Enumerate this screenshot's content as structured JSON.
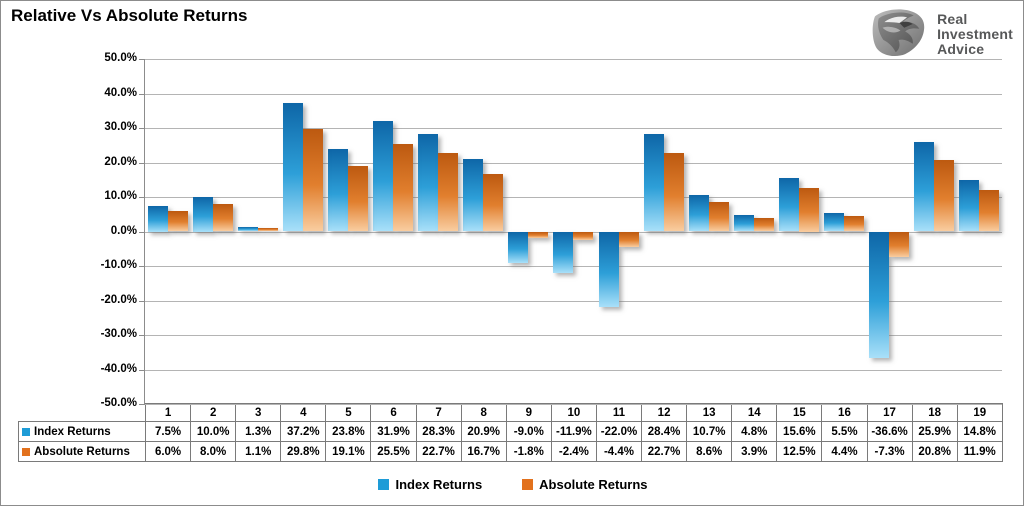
{
  "title": "Relative Vs Absolute Returns",
  "logo": {
    "line1": "Real",
    "line2": "Investment",
    "line3": "Advice",
    "icon": "eagle-shield-icon",
    "text_color": "#575859"
  },
  "chart_data": {
    "type": "bar",
    "title": "Relative Vs Absolute Returns",
    "categories": [
      "1",
      "2",
      "3",
      "4",
      "5",
      "6",
      "7",
      "8",
      "9",
      "10",
      "11",
      "12",
      "13",
      "14",
      "15",
      "16",
      "17",
      "18",
      "19"
    ],
    "series": [
      {
        "name": "Index Returns",
        "key_color": "#1e9cd7",
        "gradient": [
          "#0e66a7",
          "#2d9fd8",
          "#a9e0f9"
        ],
        "values": [
          7.5,
          10.0,
          1.3,
          37.2,
          23.8,
          31.9,
          28.3,
          20.9,
          -9.0,
          -11.9,
          -22.0,
          28.4,
          10.7,
          4.8,
          15.6,
          5.5,
          -36.6,
          25.9,
          14.8
        ]
      },
      {
        "name": "Absolute Returns",
        "key_color": "#e2711d",
        "gradient": [
          "#bc5910",
          "#e17f2e",
          "#f9cda0"
        ],
        "values": [
          6.0,
          8.0,
          1.1,
          29.8,
          19.1,
          25.5,
          22.7,
          16.7,
          -1.8,
          -2.4,
          -4.4,
          22.7,
          8.6,
          3.9,
          12.5,
          4.4,
          -7.3,
          20.8,
          11.9
        ]
      }
    ],
    "ylim": [
      -50,
      50
    ],
    "ytick_step": 10,
    "ytick_labels": [
      "50.0%",
      "40.0%",
      "30.0%",
      "20.0%",
      "10.0%",
      "0.0%",
      "-10.0%",
      "-20.0%",
      "-30.0%",
      "-40.0%",
      "-50.0%"
    ],
    "value_suffix": "%",
    "grid": "horizontal",
    "legend_position": "bottom",
    "table_shown": true
  }
}
